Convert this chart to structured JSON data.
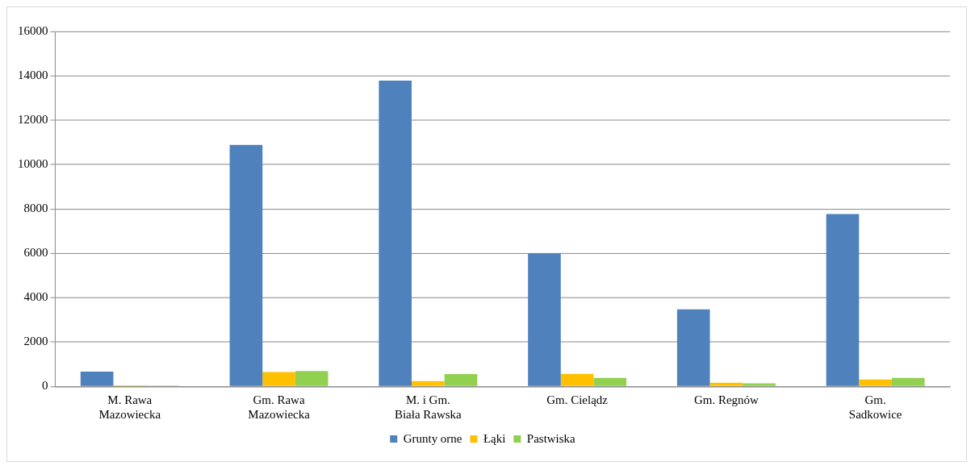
{
  "chart_data": {
    "type": "bar",
    "categories": [
      "M. Rawa Mazowiecka",
      "Gm. Rawa Mazowiecka",
      "M. i Gm. Biała Rawska",
      "Gm. Cielądz",
      "Gm. Regnów",
      "Gm. Sadkowice"
    ],
    "series": [
      {
        "name": "Grunty orne",
        "color": "#4f81bd",
        "values": [
          670,
          10880,
          13780,
          6000,
          3470,
          7770
        ]
      },
      {
        "name": "Łąki",
        "color": "#ffc000",
        "values": [
          50,
          650,
          240,
          570,
          170,
          310
        ]
      },
      {
        "name": "Pastwiska",
        "color": "#92d050",
        "values": [
          40,
          690,
          560,
          380,
          140,
          380
        ]
      }
    ],
    "ylim": [
      0,
      16000
    ],
    "yticks": [
      0,
      2000,
      4000,
      6000,
      8000,
      10000,
      12000,
      14000,
      16000
    ],
    "grid": "y",
    "legend": "bottom"
  }
}
